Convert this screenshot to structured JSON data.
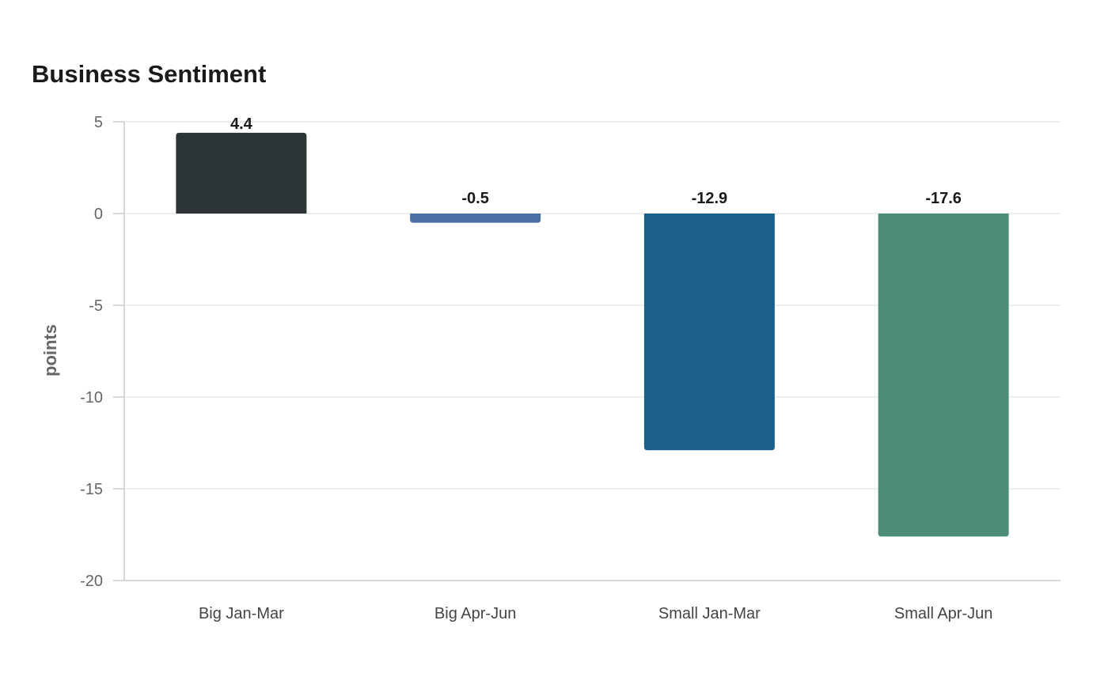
{
  "chart_data": {
    "type": "bar",
    "title": "Business Sentiment",
    "xlabel": "",
    "ylabel": "points",
    "categories": [
      "Big Jan-Mar",
      "Big Apr-Jun",
      "Small Jan-Mar",
      "Small Apr-Jun"
    ],
    "values": [
      4.4,
      -0.5,
      -12.9,
      -17.6
    ],
    "data_labels": [
      "4.4",
      "-0.5",
      "-12.9",
      "-17.6"
    ],
    "colors": [
      "#2d3436",
      "#4a6fa5",
      "#1a6089",
      "#4e8c7a"
    ],
    "ylim": [
      -20,
      5
    ],
    "yticks": [
      5,
      0,
      -5,
      -10,
      -15,
      -20
    ],
    "ytick_labels": [
      "5",
      "0",
      "-5",
      "-10",
      "-15",
      "-20"
    ],
    "grid": true,
    "legend": false
  }
}
